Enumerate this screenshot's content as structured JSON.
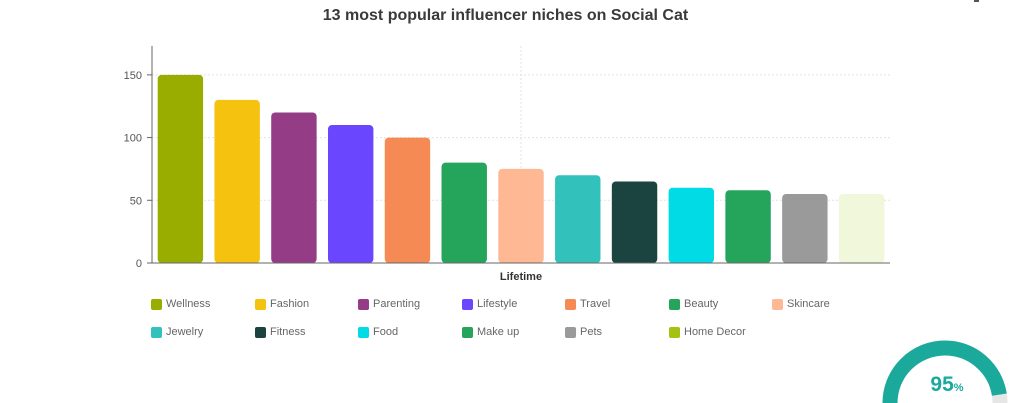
{
  "chart_data": {
    "type": "bar",
    "title": "13 most popular influencer niches on Social Cat",
    "xlabel": "Lifetime",
    "ylabel": "",
    "ylim": [
      0,
      173
    ],
    "yticks": [
      0,
      50,
      100,
      150
    ],
    "grid": true,
    "legend_position": "bottom",
    "categories": [
      "Wellness",
      "Fashion",
      "Parenting",
      "Lifestyle",
      "Travel",
      "Beauty",
      "Skincare",
      "Jewelry",
      "Fitness",
      "Food",
      "Make up",
      "Pets",
      "Home Decor"
    ],
    "values": [
      150,
      130,
      120,
      110,
      100,
      80,
      75,
      70,
      65,
      60,
      58,
      55,
      55
    ],
    "colors": [
      "#98ad00",
      "#f5c210",
      "#943c85",
      "#6a47ff",
      "#f58a55",
      "#25a55c",
      "#ffb894",
      "#33c2bb",
      "#1b4440",
      "#00dbe6",
      "#25a55c",
      "#9a9a9a",
      "#f1f7da"
    ],
    "legend_colors": [
      "#98ad00",
      "#f5c210",
      "#943c85",
      "#6a47ff",
      "#f58a55",
      "#25a55c",
      "#ffb894",
      "#33c2bb",
      "#1b4440",
      "#00dbe6",
      "#25a55c",
      "#9a9a9a",
      "#a6c210"
    ]
  },
  "gauge": {
    "value": 95,
    "label": "95",
    "unit": "%",
    "color": "#1aa99b",
    "track_color": "#e6e6e6"
  }
}
